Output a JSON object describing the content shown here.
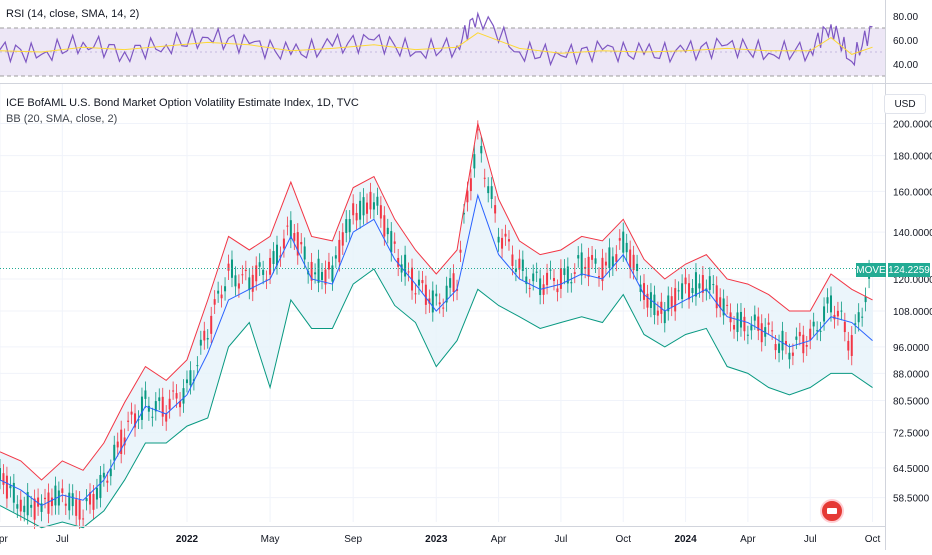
{
  "rsi_indicator": {
    "label": "RSI (14, close, SMA, 14, 2)"
  },
  "main_indicator": {
    "title": "ICE BofAML U.S. Bond Market Option Volatility Estimate Index, 1D, TVC",
    "bb_label": "BB (20, SMA, close, 2)"
  },
  "price_scale": {
    "currency": "USD"
  },
  "last_price": {
    "symbol": "MOVE",
    "value": "124.2259"
  },
  "colors": {
    "rsi_line": "#7e57c2",
    "rsi_ma": "#fdd835",
    "rsi_band": "#ede7f6",
    "bb_upper": "#f23645",
    "bb_lower": "#089981",
    "bb_basis": "#2962ff",
    "bb_fill": "#e6f3fa",
    "candle_up": "#089981",
    "candle_down": "#f23645",
    "grid": "#f0f3fa",
    "price_line": "#22ab94"
  },
  "chart_data": [
    {
      "type": "line",
      "title": "RSI (14, close, SMA, 14, 2)",
      "yticks": [
        "80.00",
        "60.00",
        "40.00"
      ],
      "ylim": [
        25,
        90
      ],
      "bands": [
        30,
        70
      ],
      "grid": true,
      "series": [
        {
          "name": "RSI",
          "x": [
            "2021-04",
            "2021-06",
            "2021-08",
            "2021-10",
            "2021-12",
            "2022-02",
            "2022-04",
            "2022-06",
            "2022-08",
            "2022-10",
            "2022-12",
            "2023-02",
            "2023-03",
            "2023-05",
            "2023-07",
            "2023-09",
            "2023-11",
            "2024-01",
            "2024-03",
            "2024-05",
            "2024-07",
            "2024-08",
            "2024-09",
            "2024-10"
          ],
          "values": [
            52,
            48,
            58,
            50,
            56,
            62,
            57,
            48,
            55,
            60,
            50,
            55,
            82,
            50,
            47,
            52,
            48,
            50,
            56,
            49,
            52,
            73,
            42,
            71
          ]
        },
        {
          "name": "RSI-based MA",
          "x": [
            "2021-04",
            "2021-06",
            "2021-08",
            "2021-10",
            "2021-12",
            "2022-02",
            "2022-04",
            "2022-06",
            "2022-08",
            "2022-10",
            "2022-12",
            "2023-02",
            "2023-03",
            "2023-05",
            "2023-07",
            "2023-09",
            "2023-11",
            "2024-01",
            "2024-03",
            "2024-05",
            "2024-07",
            "2024-08",
            "2024-09",
            "2024-10"
          ],
          "values": [
            51,
            50,
            54,
            52,
            55,
            58,
            56,
            51,
            53,
            56,
            52,
            54,
            66,
            53,
            49,
            51,
            50,
            51,
            53,
            51,
            51,
            62,
            48,
            54
          ]
        }
      ]
    },
    {
      "type": "line",
      "title": "ICE BofAML U.S. Bond Market Option Volatility Estimate Index, 1D, TVC",
      "xlabel": "",
      "ylabel": "",
      "xticks": [
        "Apr",
        "Jul",
        "2022",
        "May",
        "Sep",
        "2023",
        "Apr",
        "Jul",
        "Oct",
        "2024",
        "Apr",
        "Jul",
        "Oct"
      ],
      "yticks": [
        "200.0000",
        "180.0000",
        "160.0000",
        "140.0000",
        "120.0000",
        "108.0000",
        "96.0000",
        "88.0000",
        "80.5000",
        "72.5000",
        "64.5000",
        "58.5000"
      ],
      "ylim": [
        54,
        205
      ],
      "scale": "log",
      "grid": true,
      "last_price": 124.2259,
      "series": [
        {
          "name": "Close",
          "x": [
            "2021-04",
            "2021-05",
            "2021-06",
            "2021-07",
            "2021-08",
            "2021-09",
            "2021-10",
            "2021-11",
            "2021-12",
            "2022-01",
            "2022-02",
            "2022-03",
            "2022-04",
            "2022-05",
            "2022-06",
            "2022-07",
            "2022-08",
            "2022-09",
            "2022-10",
            "2022-11",
            "2022-12",
            "2023-01",
            "2023-02",
            "2023-03",
            "2023-04",
            "2023-05",
            "2023-06",
            "2023-07",
            "2023-08",
            "2023-09",
            "2023-10",
            "2023-11",
            "2023-12",
            "2024-01",
            "2024-02",
            "2024-03",
            "2024-04",
            "2024-05",
            "2024-06",
            "2024-07",
            "2024-08",
            "2024-09",
            "2024-10"
          ],
          "values": [
            62,
            58,
            56,
            60,
            55,
            62,
            72,
            80,
            78,
            84,
            100,
            124,
            118,
            126,
            140,
            124,
            122,
            150,
            155,
            132,
            118,
            110,
            120,
            190,
            140,
            124,
            118,
            120,
            126,
            124,
            136,
            114,
            108,
            116,
            120,
            106,
            104,
            100,
            96,
            98,
            112,
            96,
            124
          ]
        },
        {
          "name": "BB Upper",
          "x": [
            "2021-04",
            "2021-05",
            "2021-06",
            "2021-07",
            "2021-08",
            "2021-09",
            "2021-10",
            "2021-11",
            "2021-12",
            "2022-01",
            "2022-02",
            "2022-03",
            "2022-04",
            "2022-05",
            "2022-06",
            "2022-07",
            "2022-08",
            "2022-09",
            "2022-10",
            "2022-11",
            "2022-12",
            "2023-01",
            "2023-02",
            "2023-03",
            "2023-04",
            "2023-05",
            "2023-06",
            "2023-07",
            "2023-08",
            "2023-09",
            "2023-10",
            "2023-11",
            "2023-12",
            "2024-01",
            "2024-02",
            "2024-03",
            "2024-04",
            "2024-05",
            "2024-06",
            "2024-07",
            "2024-08",
            "2024-09",
            "2024-10"
          ],
          "values": [
            68,
            66,
            62,
            66,
            64,
            70,
            80,
            90,
            86,
            92,
            112,
            138,
            132,
            138,
            165,
            138,
            136,
            162,
            168,
            146,
            132,
            122,
            132,
            200,
            156,
            136,
            130,
            132,
            138,
            136,
            146,
            128,
            120,
            126,
            130,
            120,
            118,
            114,
            108,
            108,
            122,
            116,
            112
          ]
        },
        {
          "name": "BB Basis",
          "x": [
            "2021-04",
            "2021-05",
            "2021-06",
            "2021-07",
            "2021-08",
            "2021-09",
            "2021-10",
            "2021-11",
            "2021-12",
            "2022-01",
            "2022-02",
            "2022-03",
            "2022-04",
            "2022-05",
            "2022-06",
            "2022-07",
            "2022-08",
            "2022-09",
            "2022-10",
            "2022-11",
            "2022-12",
            "2023-01",
            "2023-02",
            "2023-03",
            "2023-04",
            "2023-05",
            "2023-06",
            "2023-07",
            "2023-08",
            "2023-09",
            "2023-10",
            "2023-11",
            "2023-12",
            "2024-01",
            "2024-02",
            "2024-03",
            "2024-04",
            "2024-05",
            "2024-06",
            "2024-07",
            "2024-08",
            "2024-09",
            "2024-10"
          ],
          "values": [
            62,
            60,
            57,
            59,
            58,
            62,
            70,
            79,
            77,
            82,
            94,
            112,
            116,
            120,
            138,
            120,
            118,
            140,
            146,
            128,
            118,
            108,
            116,
            158,
            130,
            120,
            116,
            118,
            122,
            120,
            130,
            114,
            108,
            112,
            116,
            106,
            104,
            100,
            96,
            98,
            106,
            104,
            98
          ]
        },
        {
          "name": "BB Lower",
          "x": [
            "2021-04",
            "2021-05",
            "2021-06",
            "2021-07",
            "2021-08",
            "2021-09",
            "2021-10",
            "2021-11",
            "2021-12",
            "2022-01",
            "2022-02",
            "2022-03",
            "2022-04",
            "2022-05",
            "2022-06",
            "2022-07",
            "2022-08",
            "2022-09",
            "2022-10",
            "2022-11",
            "2022-12",
            "2023-01",
            "2023-02",
            "2023-03",
            "2023-04",
            "2023-05",
            "2023-06",
            "2023-07",
            "2023-08",
            "2023-09",
            "2023-10",
            "2023-11",
            "2023-12",
            "2024-01",
            "2024-02",
            "2024-03",
            "2024-04",
            "2024-05",
            "2024-06",
            "2024-07",
            "2024-08",
            "2024-09",
            "2024-10"
          ],
          "values": [
            57,
            55,
            53,
            54,
            53,
            56,
            62,
            70,
            70,
            74,
            76,
            96,
            104,
            84,
            112,
            102,
            102,
            118,
            124,
            110,
            104,
            90,
            98,
            116,
            110,
            106,
            102,
            104,
            106,
            104,
            114,
            100,
            96,
            100,
            102,
            90,
            88,
            84,
            82,
            84,
            88,
            88,
            84
          ]
        }
      ]
    }
  ]
}
